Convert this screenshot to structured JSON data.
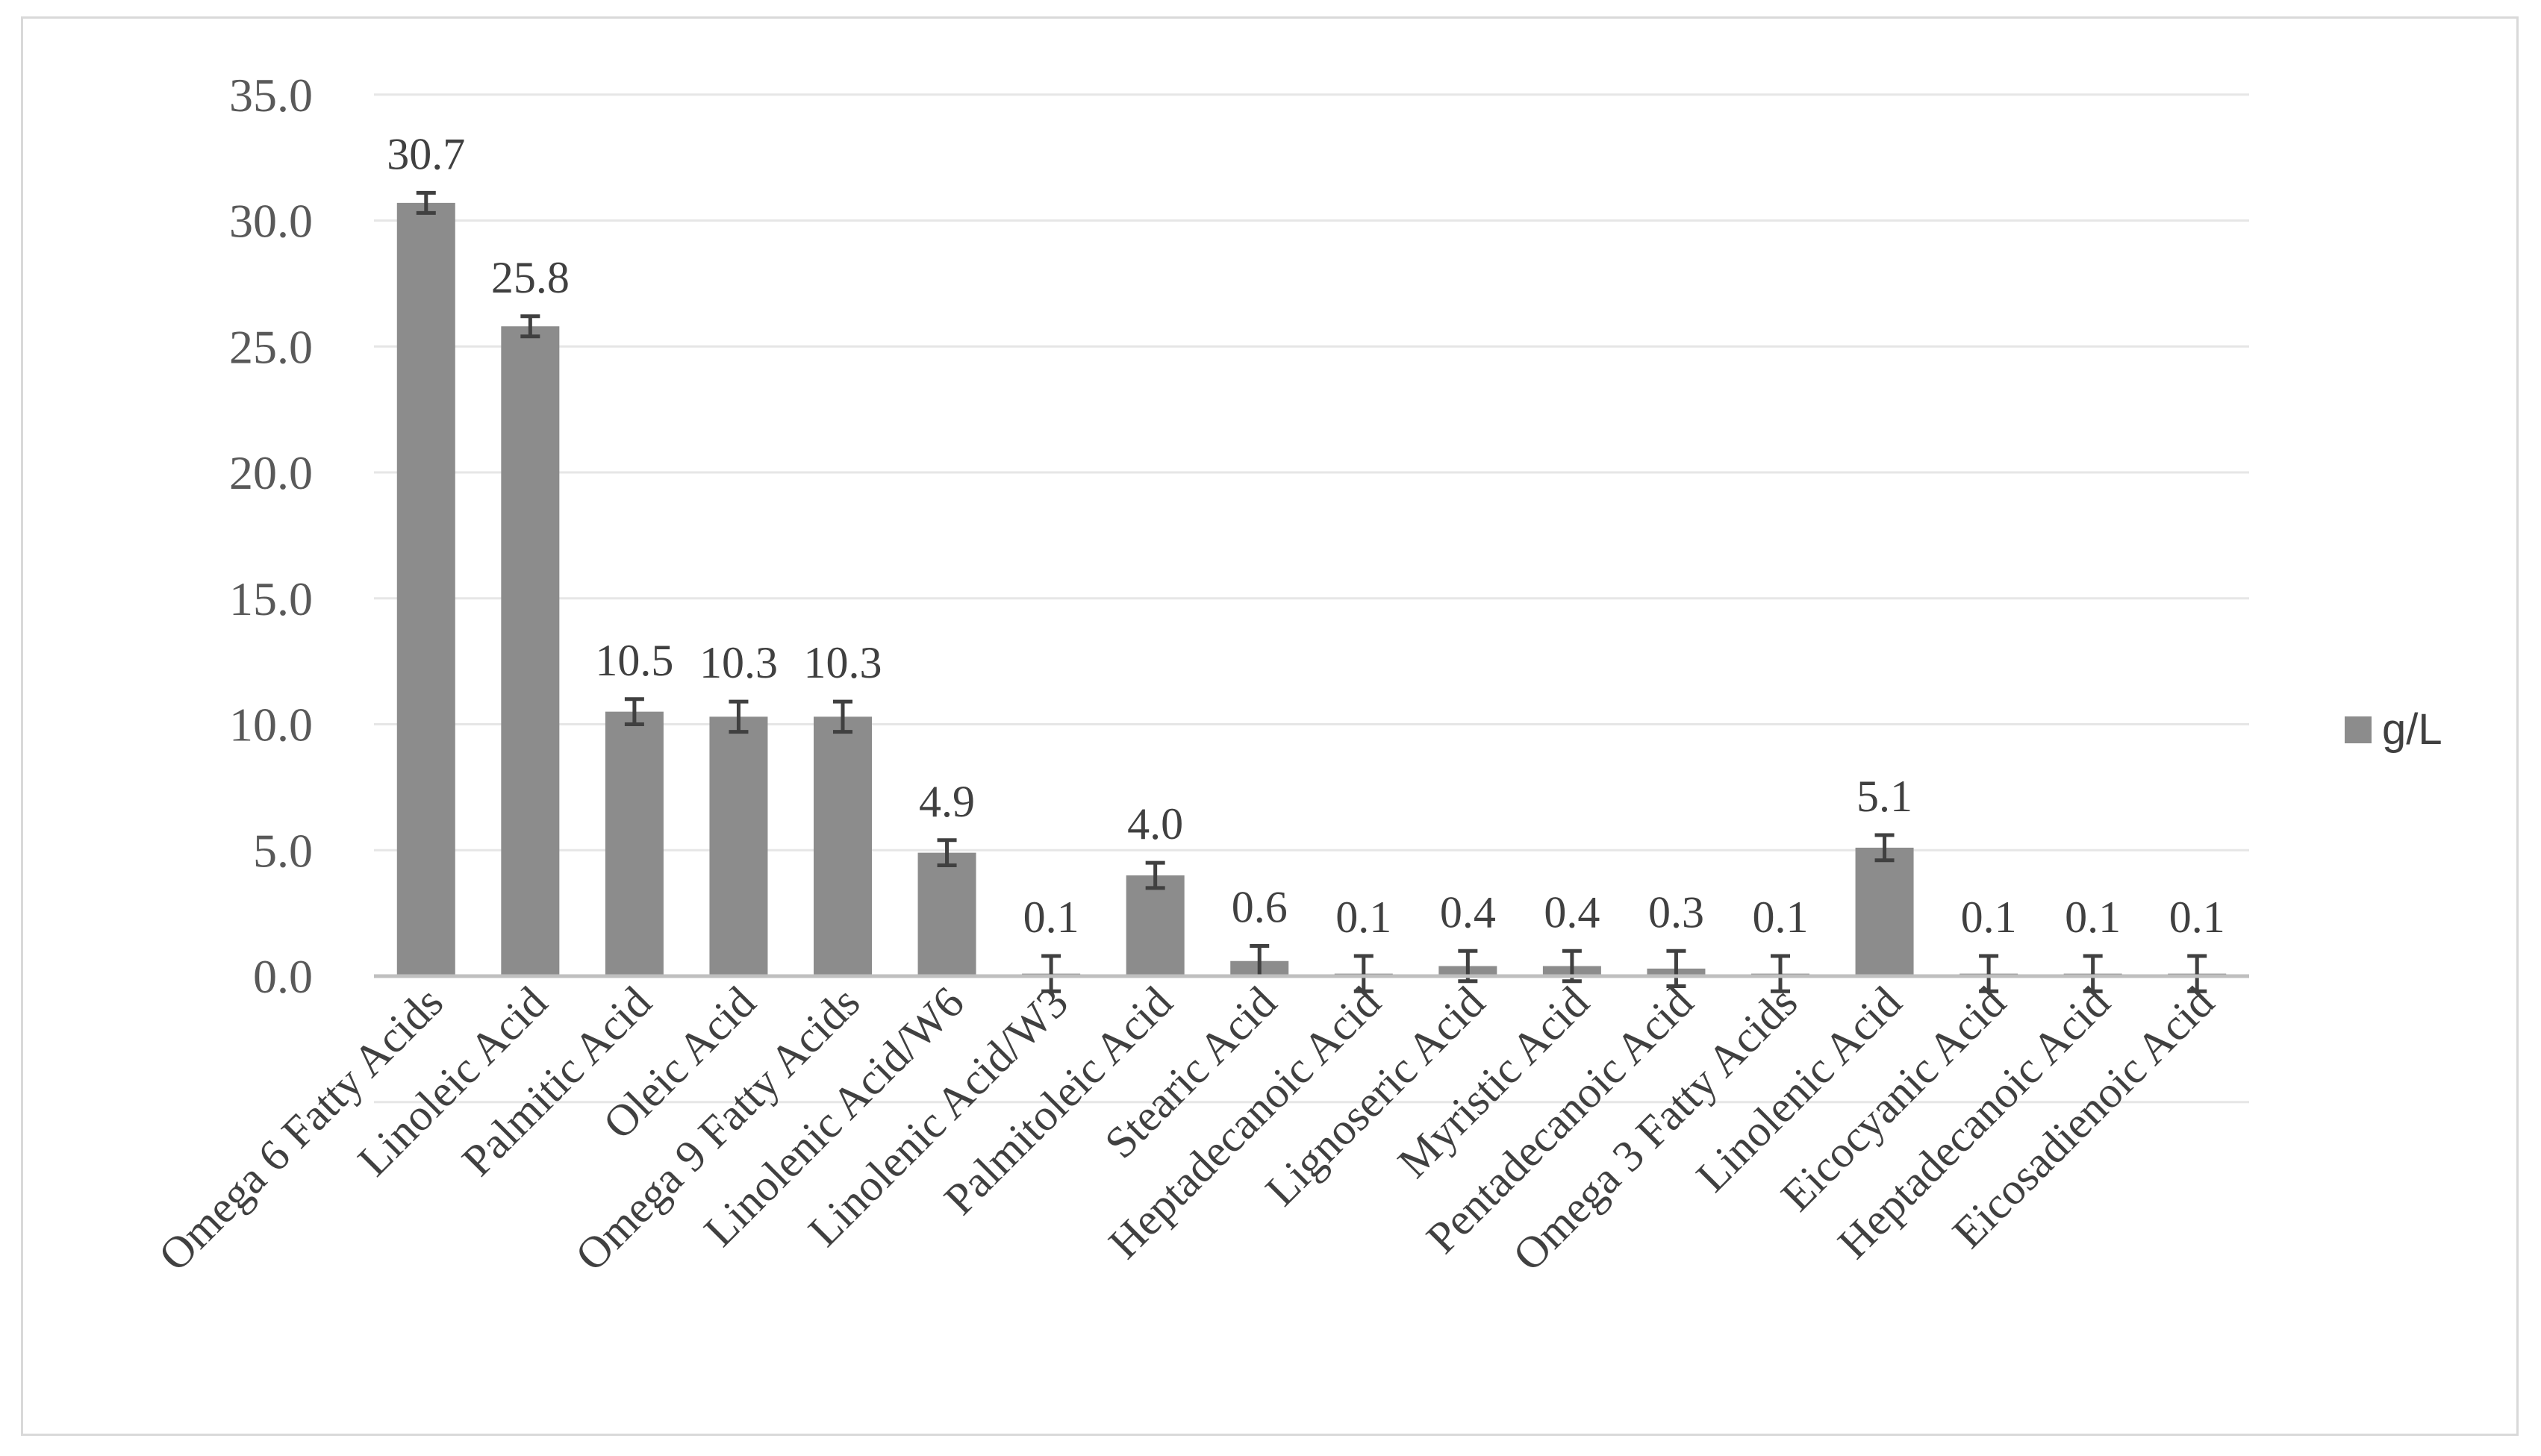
{
  "chart_data": {
    "type": "bar",
    "categories": [
      "Omega 6 Fatty Acids",
      "Linoleic Acid",
      "Palmitic Acid",
      "Oleic Acid",
      "Omega 9 Fatty Acids",
      "Linolenic Acid/W6",
      "Linolenic Acid/W3",
      "Palmitoleic Acid",
      "Stearic Acid",
      "Heptadecanoic Acid",
      "Lignoseric Acid",
      "Myristic Acid",
      "Pentadecanoic Acid",
      "Omega 3 Fatty Acids",
      "Linolenic Acid",
      "Eicocyanic Acid",
      "Heptadecanoic Acid",
      "Eicosadienoic Acid"
    ],
    "series": [
      {
        "name": "g/L",
        "values": [
          30.7,
          25.8,
          10.5,
          10.3,
          10.3,
          4.9,
          0.1,
          4.0,
          0.6,
          0.1,
          0.4,
          0.4,
          0.3,
          0.1,
          5.1,
          0.1,
          0.1,
          0.1
        ],
        "data_labels": [
          "30.7",
          "25.8",
          "10.5",
          "10.3",
          "10.3",
          "4.9",
          "0.1",
          "4.0",
          "0.6",
          "0.1",
          "0.4",
          "0.4",
          "0.3",
          "0.1",
          "5.1",
          "0.1",
          "0.1",
          "0.1"
        ],
        "errors": [
          0.4,
          0.4,
          0.5,
          0.6,
          0.6,
          0.5,
          0.7,
          0.5,
          0.6,
          0.7,
          0.6,
          0.6,
          0.7,
          0.7,
          0.5,
          0.7,
          0.7,
          0.7
        ],
        "color": "#8c8c8c"
      }
    ],
    "title": "",
    "xlabel": "",
    "ylabel": "",
    "ylim": [
      -5,
      35
    ],
    "yticks": [
      0,
      5,
      10,
      15,
      20,
      25,
      30,
      35
    ],
    "ytick_labels": [
      "0.0",
      "5.0",
      "10.0",
      "15.0",
      "20.0",
      "25.0",
      "30.0",
      "35.0"
    ],
    "grid": true,
    "legend": {
      "position": "right",
      "entries": [
        "g/L"
      ]
    },
    "colors": {
      "bar": "#8c8c8c",
      "grid": "#e6e6e6",
      "axis": "#bfbfbf",
      "error_bar": "#404040"
    }
  }
}
